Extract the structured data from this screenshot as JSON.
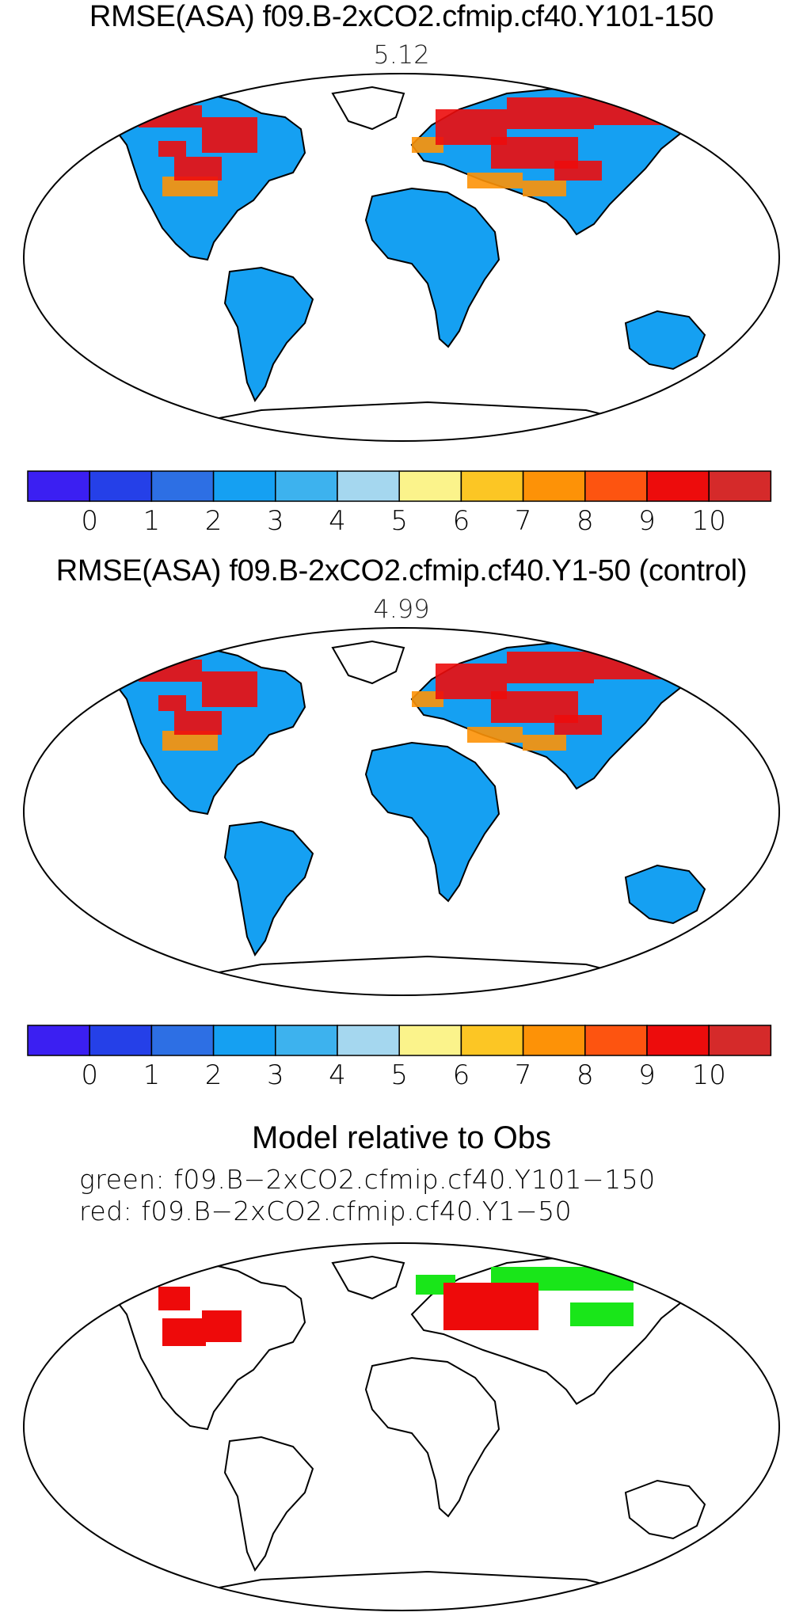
{
  "panels": [
    {
      "title": "RMSE(ASA) f09.B-2xCO2.cfmip.cf40.Y101-150",
      "value": "5.12"
    },
    {
      "title": "RMSE(ASA) f09.B-2xCO2.cfmip.cf40.Y1-50 (control)",
      "value": "4.99"
    }
  ],
  "colorbar": {
    "colors": [
      "#3b1ff2",
      "#2540e8",
      "#2d6fe4",
      "#15a0f2",
      "#3db2ee",
      "#a5d7ef",
      "#fbf38b",
      "#fcc624",
      "#fd9207",
      "#fd5410",
      "#ed0c0c",
      "#d52a2a"
    ],
    "tick_labels": [
      "0",
      "1",
      "2",
      "3",
      "4",
      "5",
      "6",
      "7",
      "8",
      "9",
      "10"
    ]
  },
  "comparison": {
    "title": "Model relative to Obs",
    "legend": [
      {
        "text": "green: f09.B−2xCO2.cfmip.cf40.Y101−150",
        "color": "#19e619"
      },
      {
        "text": "red: f09.B−2xCO2.cfmip.cf40.Y1−50",
        "color": "#ee0a0a"
      }
    ]
  }
}
